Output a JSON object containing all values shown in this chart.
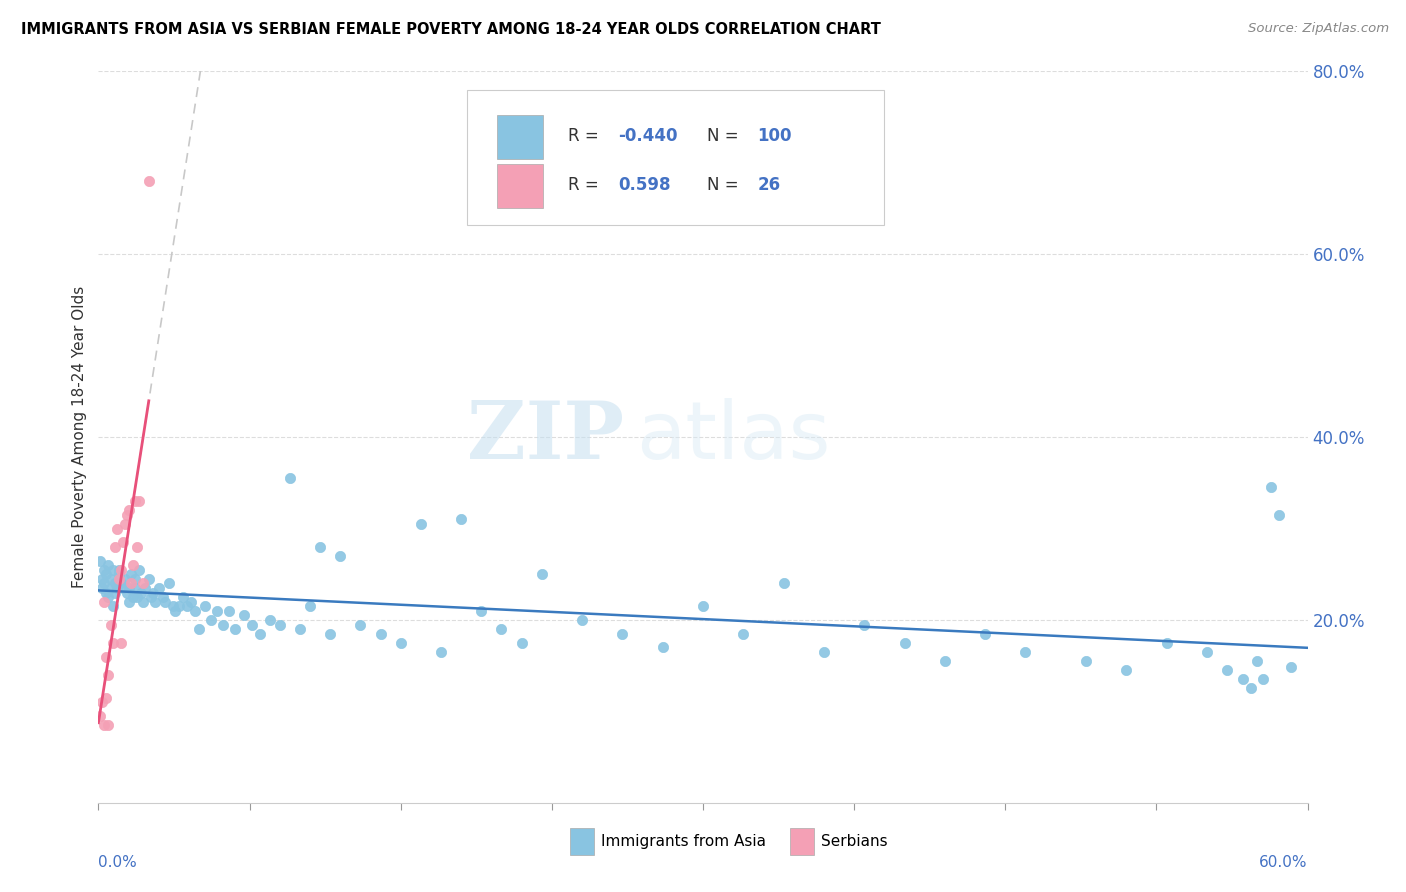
{
  "title": "IMMIGRANTS FROM ASIA VS SERBIAN FEMALE POVERTY AMONG 18-24 YEAR OLDS CORRELATION CHART",
  "source": "Source: ZipAtlas.com",
  "ylabel": "Female Poverty Among 18-24 Year Olds",
  "blue_color": "#89c4e1",
  "pink_color": "#f4a0b5",
  "trendline_blue_color": "#3a7abf",
  "trendline_pink_color": "#e8507a",
  "trendline_dashed_color": "#c8c8c8",
  "background_color": "#ffffff",
  "watermark_zip": "ZIP",
  "watermark_atlas": "atlas",
  "right_tick_color": "#4472c4",
  "xlim": [
    0.0,
    0.6
  ],
  "ylim": [
    0.0,
    0.8
  ],
  "right_yticks": [
    0.2,
    0.4,
    0.6,
    0.8
  ],
  "right_yticklabels": [
    "20.0%",
    "40.0%",
    "60.0%",
    "80.0%"
  ],
  "asia_x": [
    0.001,
    0.002,
    0.002,
    0.003,
    0.003,
    0.004,
    0.004,
    0.005,
    0.005,
    0.006,
    0.006,
    0.007,
    0.007,
    0.008,
    0.008,
    0.009,
    0.01,
    0.01,
    0.011,
    0.012,
    0.013,
    0.014,
    0.015,
    0.015,
    0.016,
    0.017,
    0.018,
    0.018,
    0.019,
    0.02,
    0.021,
    0.022,
    0.023,
    0.025,
    0.026,
    0.027,
    0.028,
    0.03,
    0.032,
    0.033,
    0.035,
    0.037,
    0.038,
    0.04,
    0.042,
    0.044,
    0.046,
    0.048,
    0.05,
    0.053,
    0.056,
    0.059,
    0.062,
    0.065,
    0.068,
    0.072,
    0.076,
    0.08,
    0.085,
    0.09,
    0.095,
    0.1,
    0.105,
    0.11,
    0.115,
    0.12,
    0.13,
    0.14,
    0.15,
    0.16,
    0.17,
    0.18,
    0.19,
    0.2,
    0.21,
    0.22,
    0.24,
    0.26,
    0.28,
    0.3,
    0.32,
    0.34,
    0.36,
    0.38,
    0.4,
    0.42,
    0.44,
    0.46,
    0.49,
    0.51,
    0.53,
    0.55,
    0.56,
    0.568,
    0.572,
    0.575,
    0.578,
    0.582,
    0.586,
    0.592
  ],
  "asia_y": [
    0.265,
    0.245,
    0.235,
    0.255,
    0.24,
    0.23,
    0.25,
    0.26,
    0.225,
    0.235,
    0.245,
    0.255,
    0.215,
    0.24,
    0.23,
    0.235,
    0.25,
    0.255,
    0.24,
    0.235,
    0.245,
    0.23,
    0.235,
    0.22,
    0.25,
    0.225,
    0.235,
    0.245,
    0.225,
    0.255,
    0.23,
    0.22,
    0.235,
    0.245,
    0.225,
    0.23,
    0.22,
    0.235,
    0.225,
    0.22,
    0.24,
    0.215,
    0.21,
    0.215,
    0.225,
    0.215,
    0.22,
    0.21,
    0.19,
    0.215,
    0.2,
    0.21,
    0.195,
    0.21,
    0.19,
    0.205,
    0.195,
    0.185,
    0.2,
    0.195,
    0.355,
    0.19,
    0.215,
    0.28,
    0.185,
    0.27,
    0.195,
    0.185,
    0.175,
    0.305,
    0.165,
    0.31,
    0.21,
    0.19,
    0.175,
    0.25,
    0.2,
    0.185,
    0.17,
    0.215,
    0.185,
    0.24,
    0.165,
    0.195,
    0.175,
    0.155,
    0.185,
    0.165,
    0.155,
    0.145,
    0.175,
    0.165,
    0.145,
    0.135,
    0.126,
    0.155,
    0.135,
    0.345,
    0.315,
    0.148
  ],
  "serbian_x": [
    0.001,
    0.002,
    0.003,
    0.003,
    0.004,
    0.004,
    0.005,
    0.005,
    0.006,
    0.007,
    0.008,
    0.009,
    0.01,
    0.011,
    0.011,
    0.012,
    0.013,
    0.014,
    0.015,
    0.016,
    0.017,
    0.018,
    0.019,
    0.02,
    0.022,
    0.025
  ],
  "serbian_y": [
    0.095,
    0.11,
    0.22,
    0.085,
    0.16,
    0.115,
    0.14,
    0.085,
    0.195,
    0.175,
    0.28,
    0.3,
    0.245,
    0.255,
    0.175,
    0.285,
    0.305,
    0.315,
    0.32,
    0.24,
    0.26,
    0.33,
    0.28,
    0.33,
    0.24,
    0.68
  ]
}
